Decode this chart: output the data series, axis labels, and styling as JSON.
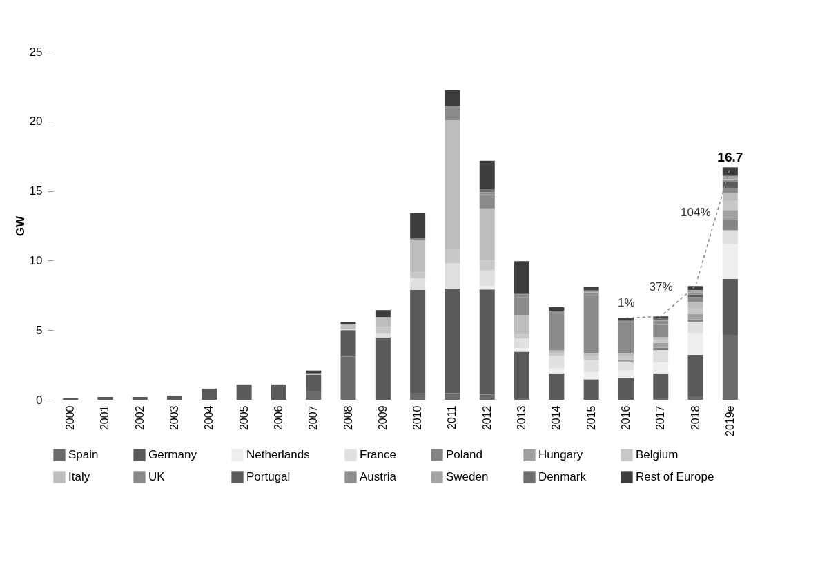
{
  "chart_data": {
    "type": "bar",
    "stacked": true,
    "ylabel": "GW",
    "categories": [
      "2000",
      "2001",
      "2002",
      "2003",
      "2004",
      "2005",
      "2006",
      "2007",
      "2008",
      "2009",
      "2010",
      "2011",
      "2012",
      "2013",
      "2014",
      "2015",
      "2016",
      "2017",
      "2018",
      "2019e"
    ],
    "ylim": [
      0,
      25
    ],
    "yticks": [
      0,
      5,
      10,
      15,
      20,
      25
    ],
    "grid": false,
    "legend": "bottom",
    "line_style": "dashed",
    "series": [
      {
        "name": "Spain",
        "color": "#6b6b6b",
        "values": [
          null,
          null,
          null,
          null,
          null,
          null,
          null,
          0.6,
          3.1,
          null,
          0.5,
          0.48,
          0.37,
          0.15,
          null,
          null,
          null,
          0.1,
          0.25,
          4.66
        ]
      },
      {
        "name": "Germany",
        "color": "#5a5a5a",
        "values": [
          0.1,
          0.2,
          0.2,
          0.3,
          0.8,
          1.1,
          1.1,
          1.2,
          1.9,
          4.48,
          7.4,
          7.52,
          7.55,
          3.3,
          1.9,
          1.47,
          1.57,
          1.8,
          2.97,
          4.02
        ]
      },
      {
        "name": "Netherlands",
        "color": "#eeeeee",
        "values": [
          null,
          null,
          null,
          null,
          null,
          null,
          null,
          null,
          null,
          null,
          null,
          null,
          0.26,
          0.26,
          0.36,
          0.51,
          0.53,
          0.78,
          1.55,
          2.51
        ]
      },
      {
        "name": "France",
        "color": "#e0e0e0",
        "values": [
          null,
          null,
          null,
          null,
          null,
          null,
          null,
          null,
          0.1,
          0.26,
          0.83,
          1.79,
          1.11,
          0.69,
          0.91,
          0.86,
          0.58,
          0.88,
          0.83,
          0.99
        ]
      },
      {
        "name": "Poland",
        "color": "#858585",
        "values": [
          null,
          null,
          null,
          null,
          null,
          null,
          null,
          null,
          null,
          null,
          null,
          null,
          null,
          null,
          null,
          null,
          0.08,
          0.17,
          0.17,
          0.74
        ]
      },
      {
        "name": "Hungary",
        "color": "#a0a0a0",
        "values": [
          null,
          null,
          null,
          null,
          null,
          null,
          null,
          null,
          null,
          null,
          null,
          null,
          null,
          null,
          null,
          null,
          0.08,
          0.36,
          0.41,
          0.71
        ]
      },
      {
        "name": "Belgium",
        "color": "#c8c8c8",
        "values": [
          null,
          null,
          null,
          null,
          null,
          null,
          null,
          null,
          null,
          0.5,
          0.43,
          1.07,
          0.71,
          0.3,
          0.2,
          0.3,
          0.3,
          0.2,
          0.38,
          0.66
        ]
      },
      {
        "name": "Italy",
        "color": "#bdbdbd",
        "values": [
          null,
          null,
          null,
          null,
          null,
          null,
          null,
          0.1,
          0.35,
          0.7,
          2.35,
          9.23,
          3.75,
          1.4,
          0.18,
          0.23,
          0.23,
          0.21,
          0.46,
          0.56
        ]
      },
      {
        "name": "UK",
        "color": "#8a8a8a",
        "values": [
          null,
          null,
          null,
          null,
          null,
          null,
          null,
          null,
          null,
          null,
          0.07,
          0.86,
          0.91,
          1.16,
          2.6,
          4.13,
          2.2,
          0.94,
          0.36,
          0.38
        ]
      },
      {
        "name": "Portugal",
        "color": "#5c5c5c",
        "values": [
          null,
          null,
          null,
          null,
          null,
          null,
          null,
          null,
          null,
          null,
          null,
          null,
          0.1,
          0.1,
          null,
          null,
          null,
          null,
          0.17,
          0.41
        ]
      },
      {
        "name": "Austria",
        "color": "#8e8e8e",
        "values": [
          null,
          null,
          null,
          null,
          null,
          null,
          null,
          null,
          null,
          null,
          null,
          0.17,
          0.16,
          0.2,
          0.25,
          0.2,
          0.09,
          0.21,
          0.17,
          0.2
        ]
      },
      {
        "name": "Sweden",
        "color": "#a5a5a5",
        "values": [
          null,
          null,
          null,
          null,
          null,
          null,
          null,
          null,
          null,
          null,
          null,
          null,
          null,
          null,
          null,
          0.1,
          null,
          0.1,
          0.17,
          0.21
        ]
      },
      {
        "name": "Denmark",
        "color": "#6e6e6e",
        "values": [
          null,
          null,
          null,
          null,
          null,
          null,
          null,
          null,
          null,
          null,
          null,
          null,
          0.2,
          0.13,
          null,
          0.08,
          0.08,
          0.07,
          null,
          0.08
        ]
      },
      {
        "name": "Rest of Europe",
        "color": "#3d3d3d",
        "values": [
          null,
          null,
          null,
          null,
          null,
          null,
          null,
          0.2,
          0.15,
          0.5,
          1.82,
          1.12,
          2.05,
          2.27,
          0.25,
          0.21,
          0.13,
          0.17,
          0.28,
          0.57
        ]
      },
      {
        "type": "line",
        "color": "#888888",
        "values": [
          null,
          null,
          null,
          null,
          null,
          null,
          null,
          null,
          null,
          null,
          null,
          null,
          null,
          null,
          null,
          null,
          5.87,
          5.99,
          8.17,
          16.7
        ]
      }
    ],
    "totals": [
      null,
      null,
      null,
      null,
      null,
      null,
      null,
      null,
      null,
      null,
      null,
      null,
      null,
      null,
      null,
      null,
      null,
      null,
      null,
      "16.7"
    ],
    "annotations": [
      "1%",
      "37%",
      "104%"
    ]
  }
}
